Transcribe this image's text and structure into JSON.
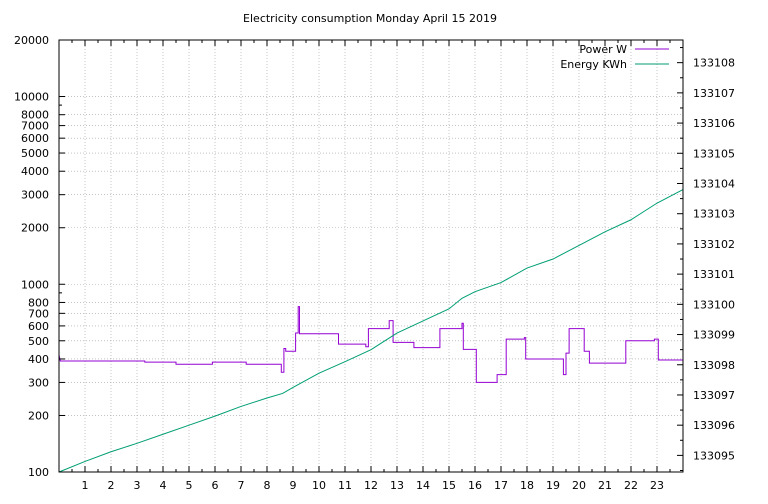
{
  "chart_data": {
    "type": "line",
    "title": "Electricity consumption Monday April 15 2019",
    "xlabel": "",
    "ylabel": "",
    "y2label": "",
    "xlim": [
      0,
      24
    ],
    "ylim": [
      100,
      20000
    ],
    "y_scale": "log",
    "y2lim": [
      133094.45,
      133108.75
    ],
    "grid": true,
    "legend_position": "top-right",
    "x_ticks": [
      1,
      2,
      3,
      4,
      5,
      6,
      7,
      8,
      9,
      10,
      11,
      12,
      13,
      14,
      15,
      16,
      17,
      18,
      19,
      20,
      21,
      22,
      23
    ],
    "y_ticks": [
      100,
      200,
      300,
      400,
      500,
      600,
      700,
      800,
      1000,
      2000,
      3000,
      4000,
      5000,
      6000,
      7000,
      8000,
      10000,
      20000
    ],
    "y2_ticks": [
      133095,
      133096,
      133097,
      133098,
      133099,
      133100,
      133101,
      133102,
      133103,
      133104,
      133105,
      133106,
      133107,
      133108
    ],
    "colors": {
      "power": "#9400d3",
      "energy": "#009e73"
    },
    "series": [
      {
        "name": "Power W",
        "axis": "y",
        "points": [
          [
            0,
            420
          ],
          [
            0.05,
            390
          ],
          [
            3.3,
            390
          ],
          [
            3.3,
            385
          ],
          [
            4.5,
            385
          ],
          [
            4.5,
            375
          ],
          [
            5.9,
            375
          ],
          [
            5.9,
            385
          ],
          [
            7.2,
            385
          ],
          [
            7.2,
            375
          ],
          [
            8.55,
            375
          ],
          [
            8.55,
            340
          ],
          [
            8.65,
            340
          ],
          [
            8.65,
            455
          ],
          [
            8.72,
            455
          ],
          [
            8.72,
            440
          ],
          [
            9.1,
            440
          ],
          [
            9.1,
            550
          ],
          [
            9.2,
            550
          ],
          [
            9.2,
            760
          ],
          [
            9.25,
            760
          ],
          [
            9.25,
            545
          ],
          [
            10.75,
            545
          ],
          [
            10.75,
            480
          ],
          [
            11.8,
            480
          ],
          [
            11.8,
            465
          ],
          [
            11.9,
            465
          ],
          [
            11.9,
            580
          ],
          [
            12.7,
            580
          ],
          [
            12.7,
            640
          ],
          [
            12.85,
            640
          ],
          [
            12.85,
            490
          ],
          [
            13.65,
            490
          ],
          [
            13.65,
            460
          ],
          [
            14.65,
            460
          ],
          [
            14.65,
            580
          ],
          [
            15.5,
            580
          ],
          [
            15.5,
            620
          ],
          [
            15.55,
            620
          ],
          [
            15.55,
            450
          ],
          [
            16.05,
            450
          ],
          [
            16.05,
            300
          ],
          [
            16.85,
            300
          ],
          [
            16.85,
            330
          ],
          [
            17.2,
            330
          ],
          [
            17.2,
            510
          ],
          [
            17.9,
            510
          ],
          [
            17.9,
            520
          ],
          [
            17.95,
            520
          ],
          [
            17.95,
            400
          ],
          [
            19.4,
            400
          ],
          [
            19.4,
            330
          ],
          [
            19.5,
            330
          ],
          [
            19.5,
            430
          ],
          [
            19.62,
            430
          ],
          [
            19.62,
            580
          ],
          [
            20.2,
            580
          ],
          [
            20.2,
            440
          ],
          [
            20.4,
            440
          ],
          [
            20.4,
            380
          ],
          [
            21.8,
            380
          ],
          [
            21.8,
            500
          ],
          [
            22.9,
            500
          ],
          [
            22.9,
            510
          ],
          [
            23.05,
            510
          ],
          [
            23.05,
            395
          ],
          [
            24,
            395
          ]
        ]
      },
      {
        "name": "Energy KWh",
        "axis": "y2",
        "points": [
          [
            0,
            133094.45
          ],
          [
            1,
            133094.8
          ],
          [
            2,
            133095.12
          ],
          [
            3,
            133095.4
          ],
          [
            4,
            133095.7
          ],
          [
            5,
            133096.0
          ],
          [
            6,
            133096.3
          ],
          [
            7,
            133096.62
          ],
          [
            8,
            133096.9
          ],
          [
            8.6,
            133097.05
          ],
          [
            9,
            133097.25
          ],
          [
            10,
            133097.72
          ],
          [
            11,
            133098.1
          ],
          [
            12,
            133098.5
          ],
          [
            13,
            133099.05
          ],
          [
            14,
            133099.45
          ],
          [
            15,
            133099.85
          ],
          [
            15.5,
            133100.2
          ],
          [
            16,
            133100.42
          ],
          [
            17,
            133100.72
          ],
          [
            18,
            133101.2
          ],
          [
            19,
            133101.5
          ],
          [
            20,
            133101.95
          ],
          [
            21,
            133102.4
          ],
          [
            22,
            133102.8
          ],
          [
            23,
            133103.35
          ],
          [
            24,
            133103.8
          ]
        ]
      }
    ]
  }
}
